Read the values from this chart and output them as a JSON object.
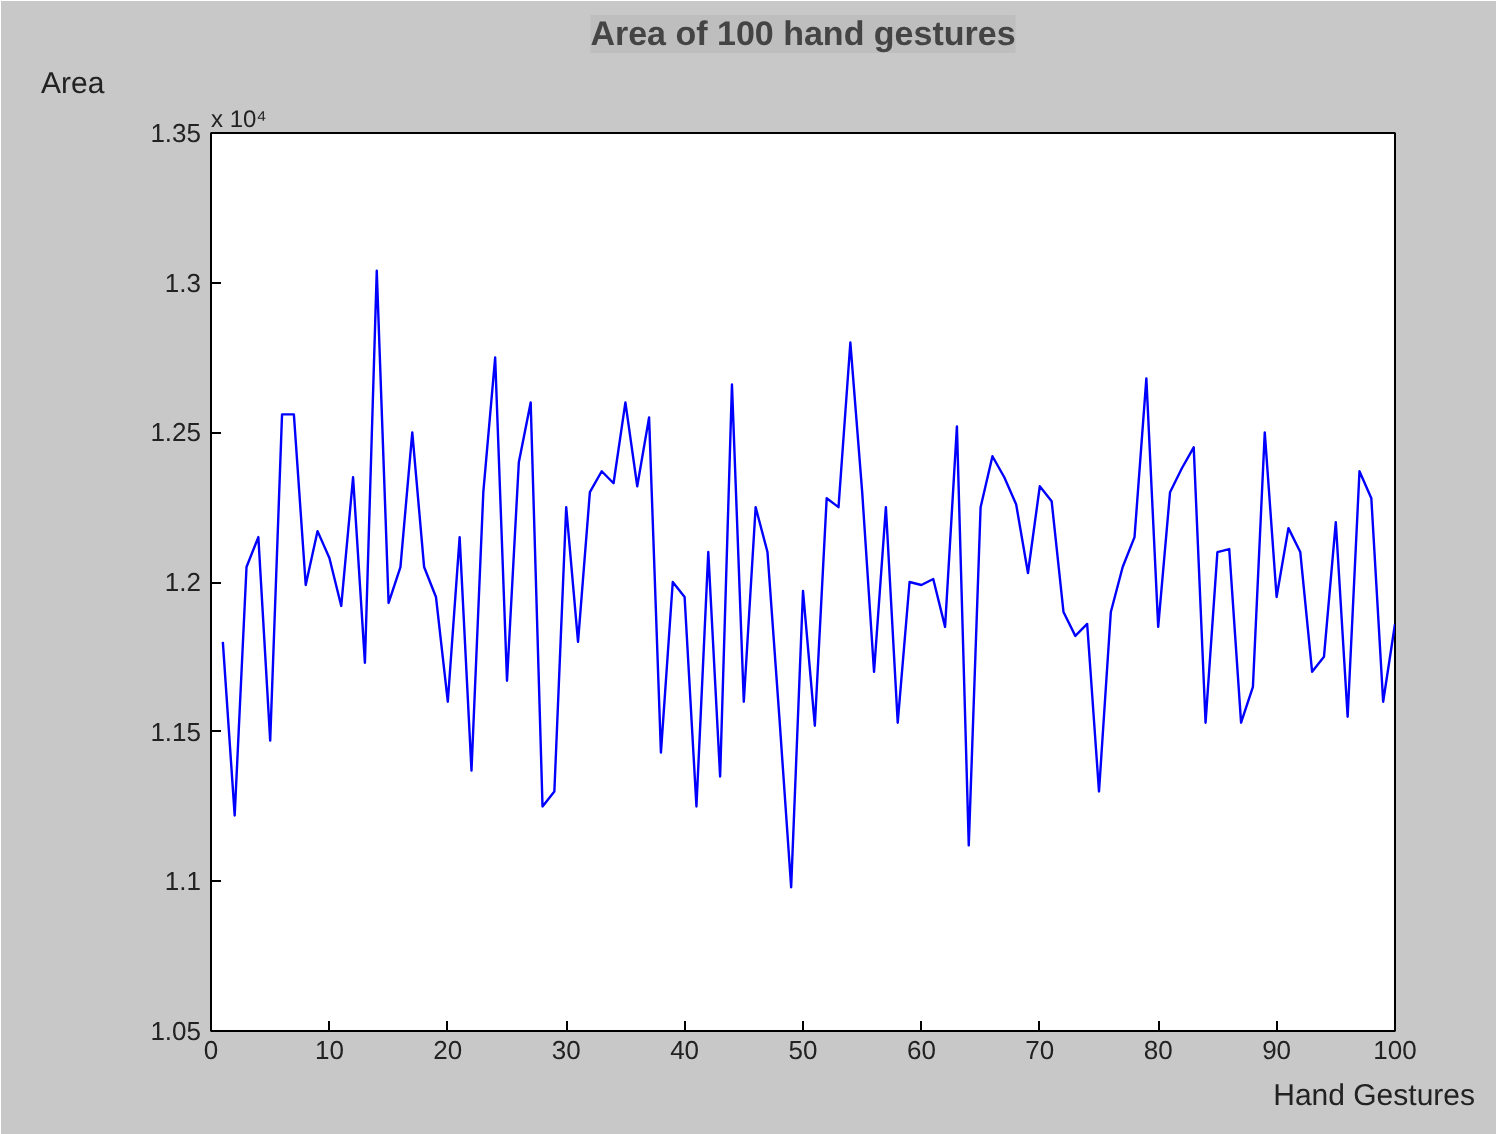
{
  "chart_data": {
    "type": "line",
    "title": "Area of 100 hand gestures",
    "xlabel": "Hand Gestures",
    "ylabel": "Area",
    "annotations": [
      "x 10⁴"
    ],
    "x": [
      1,
      2,
      3,
      4,
      5,
      6,
      7,
      8,
      9,
      10,
      11,
      12,
      13,
      14,
      15,
      16,
      17,
      18,
      19,
      20,
      21,
      22,
      23,
      24,
      25,
      26,
      27,
      28,
      29,
      30,
      31,
      32,
      33,
      34,
      35,
      36,
      37,
      38,
      39,
      40,
      41,
      42,
      43,
      44,
      45,
      46,
      47,
      48,
      49,
      50,
      51,
      52,
      53,
      54,
      55,
      56,
      57,
      58,
      59,
      60,
      61,
      62,
      63,
      64,
      65,
      66,
      67,
      68,
      69,
      70,
      71,
      72,
      73,
      74,
      75,
      76,
      77,
      78,
      79,
      80,
      81,
      82,
      83,
      84,
      85,
      86,
      87,
      88,
      89,
      90,
      91,
      92,
      93,
      94,
      95,
      96,
      97,
      98,
      99,
      100
    ],
    "series": [
      {
        "color": "#0000ff",
        "values": [
          1.18,
          1.122,
          1.205,
          1.215,
          1.147,
          1.256,
          1.256,
          1.199,
          1.217,
          1.208,
          1.192,
          1.235,
          1.173,
          1.304,
          1.193,
          1.205,
          1.25,
          1.205,
          1.195,
          1.16,
          1.215,
          1.137,
          1.23,
          1.275,
          1.167,
          1.24,
          1.26,
          1.125,
          1.13,
          1.225,
          1.18,
          1.23,
          1.237,
          1.233,
          1.26,
          1.232,
          1.255,
          1.143,
          1.2,
          1.195,
          1.125,
          1.21,
          1.135,
          1.266,
          1.16,
          1.225,
          1.21,
          1.155,
          1.098,
          1.197,
          1.152,
          1.228,
          1.225,
          1.28,
          1.23,
          1.17,
          1.225,
          1.153,
          1.2,
          1.199,
          1.201,
          1.185,
          1.252,
          1.112,
          1.225,
          1.242,
          1.235,
          1.226,
          1.203,
          1.232,
          1.227,
          1.19,
          1.182,
          1.186,
          1.13,
          1.19,
          1.205,
          1.215,
          1.268,
          1.185,
          1.23,
          1.238,
          1.245,
          1.153,
          1.21,
          1.211,
          1.153,
          1.165,
          1.25,
          1.195,
          1.218,
          1.21,
          1.17,
          1.175,
          1.22,
          1.155,
          1.237,
          1.228,
          1.16,
          1.186
        ]
      }
    ],
    "xlim": [
      0,
      100
    ],
    "xticks": [
      0,
      10,
      20,
      30,
      40,
      50,
      60,
      70,
      80,
      90,
      100
    ],
    "ylim": [
      1.05,
      1.35
    ],
    "yticks": [
      1.05,
      1.1,
      1.15,
      1.2,
      1.25,
      1.3,
      1.35
    ],
    "grid": false,
    "marker": "none",
    "line_style": "solid"
  }
}
